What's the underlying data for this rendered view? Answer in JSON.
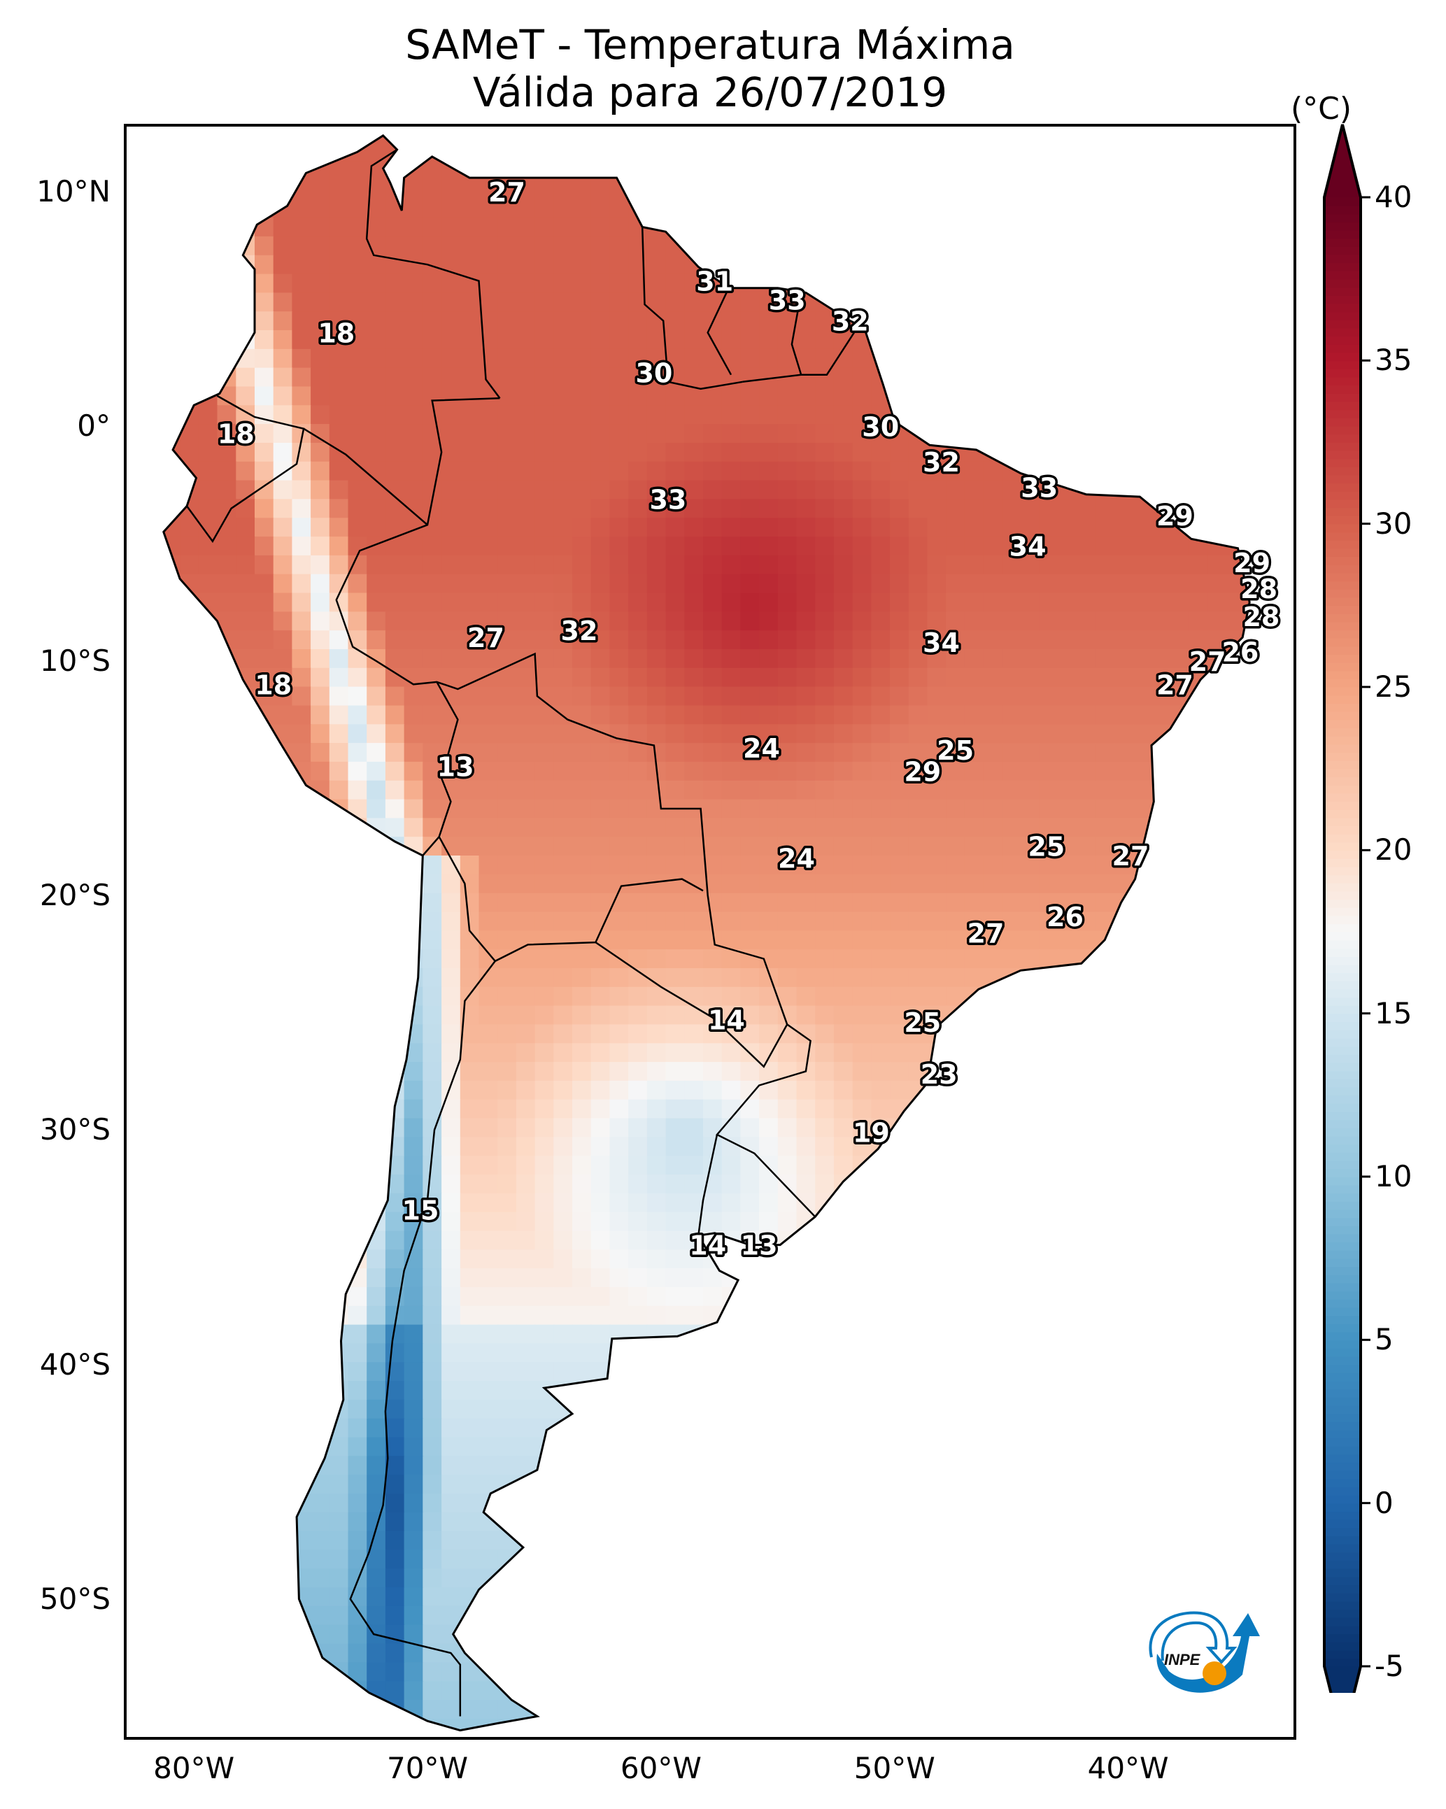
{
  "title": {
    "line1": "SAMeT - Temperatura Máxima",
    "line2": "Válida para 26/07/2019"
  },
  "chart_data": {
    "type": "heatmap",
    "title": "SAMeT - Temperatura Máxima",
    "subtitle": "Válida para 26/07/2019",
    "xlabel": "",
    "ylabel": "",
    "x_range_lon": [
      -83.0,
      -32.8
    ],
    "y_range_lat": [
      -56.0,
      12.9
    ],
    "x_ticks": [
      {
        "lon": -80,
        "label": "80°W"
      },
      {
        "lon": -70,
        "label": "70°W"
      },
      {
        "lon": -60,
        "label": "60°W"
      },
      {
        "lon": -50,
        "label": "50°W"
      },
      {
        "lon": -40,
        "label": "40°W"
      }
    ],
    "y_ticks": [
      {
        "lat": 10,
        "label": "10°N"
      },
      {
        "lat": 0,
        "label": "0°"
      },
      {
        "lat": -10,
        "label": "10°S"
      },
      {
        "lat": -20,
        "label": "20°S"
      },
      {
        "lat": -30,
        "label": "30°S"
      },
      {
        "lat": -40,
        "label": "40°S"
      },
      {
        "lat": -50,
        "label": "50°S"
      }
    ],
    "colorbar": {
      "unit": "(°C)",
      "min": -5,
      "max": 40,
      "extend": "both",
      "colormap": "RdBu_r",
      "ticks": [
        -5,
        0,
        5,
        10,
        15,
        20,
        25,
        30,
        35,
        40
      ],
      "stops": [
        {
          "v": -5,
          "c": "#08306b"
        },
        {
          "v": 0,
          "c": "#2166ac"
        },
        {
          "v": 5,
          "c": "#4393c3"
        },
        {
          "v": 10,
          "c": "#92c5de"
        },
        {
          "v": 15,
          "c": "#d1e5f0"
        },
        {
          "v": 17.5,
          "c": "#f7f7f7"
        },
        {
          "v": 20,
          "c": "#fddbc7"
        },
        {
          "v": 25,
          "c": "#f4a582"
        },
        {
          "v": 30,
          "c": "#d6604d"
        },
        {
          "v": 35,
          "c": "#b2182b"
        },
        {
          "v": 40,
          "c": "#67001f"
        }
      ]
    },
    "station_values": [
      {
        "lon": -66.6,
        "lat": 10.0,
        "value": 27
      },
      {
        "lon": -73.9,
        "lat": 4.0,
        "value": 18
      },
      {
        "lon": -57.7,
        "lat": 6.2,
        "value": 31
      },
      {
        "lon": -54.6,
        "lat": 5.4,
        "value": 33
      },
      {
        "lon": -51.9,
        "lat": 4.5,
        "value": 32
      },
      {
        "lon": -60.3,
        "lat": 2.3,
        "value": 30
      },
      {
        "lon": -78.2,
        "lat": -0.3,
        "value": 18
      },
      {
        "lon": -50.6,
        "lat": -0.0,
        "value": 30
      },
      {
        "lon": -48.0,
        "lat": -1.5,
        "value": 32
      },
      {
        "lon": -59.7,
        "lat": -3.1,
        "value": 33
      },
      {
        "lon": -43.8,
        "lat": -2.6,
        "value": 33
      },
      {
        "lon": -38.0,
        "lat": -3.8,
        "value": 29
      },
      {
        "lon": -44.3,
        "lat": -5.1,
        "value": 34
      },
      {
        "lon": -34.7,
        "lat": -5.8,
        "value": 29
      },
      {
        "lon": -34.4,
        "lat": -6.9,
        "value": 28
      },
      {
        "lon": -34.3,
        "lat": -8.1,
        "value": 28
      },
      {
        "lon": -63.5,
        "lat": -8.7,
        "value": 32
      },
      {
        "lon": -35.2,
        "lat": -9.6,
        "value": 26
      },
      {
        "lon": -67.5,
        "lat": -9.0,
        "value": 27
      },
      {
        "lon": -48.0,
        "lat": -9.2,
        "value": 34
      },
      {
        "lon": -36.6,
        "lat": -10.0,
        "value": 27
      },
      {
        "lon": -76.6,
        "lat": -11.0,
        "value": 18
      },
      {
        "lon": -38.0,
        "lat": -11.0,
        "value": 27
      },
      {
        "lon": -55.7,
        "lat": -13.7,
        "value": 24
      },
      {
        "lon": -47.4,
        "lat": -13.8,
        "value": 25
      },
      {
        "lon": -68.8,
        "lat": -14.5,
        "value": 13
      },
      {
        "lon": -48.8,
        "lat": -14.7,
        "value": 29
      },
      {
        "lon": -43.5,
        "lat": -17.9,
        "value": 25
      },
      {
        "lon": -54.2,
        "lat": -18.4,
        "value": 24
      },
      {
        "lon": -39.9,
        "lat": -18.3,
        "value": 27
      },
      {
        "lon": -42.7,
        "lat": -20.9,
        "value": 26
      },
      {
        "lon": -46.1,
        "lat": -21.6,
        "value": 27
      },
      {
        "lon": -57.2,
        "lat": -25.3,
        "value": 14
      },
      {
        "lon": -48.8,
        "lat": -25.4,
        "value": 25
      },
      {
        "lon": -48.1,
        "lat": -27.6,
        "value": 23
      },
      {
        "lon": -51.0,
        "lat": -30.1,
        "value": 19
      },
      {
        "lon": -70.3,
        "lat": -33.4,
        "value": 15
      },
      {
        "lon": -58.0,
        "lat": -34.9,
        "value": 14
      },
      {
        "lon": -55.8,
        "lat": -34.9,
        "value": 13
      }
    ]
  },
  "logo": {
    "text": "INPE",
    "colors": {
      "blue": "#0a7abf",
      "orange": "#f39800",
      "text": "#111111"
    }
  }
}
